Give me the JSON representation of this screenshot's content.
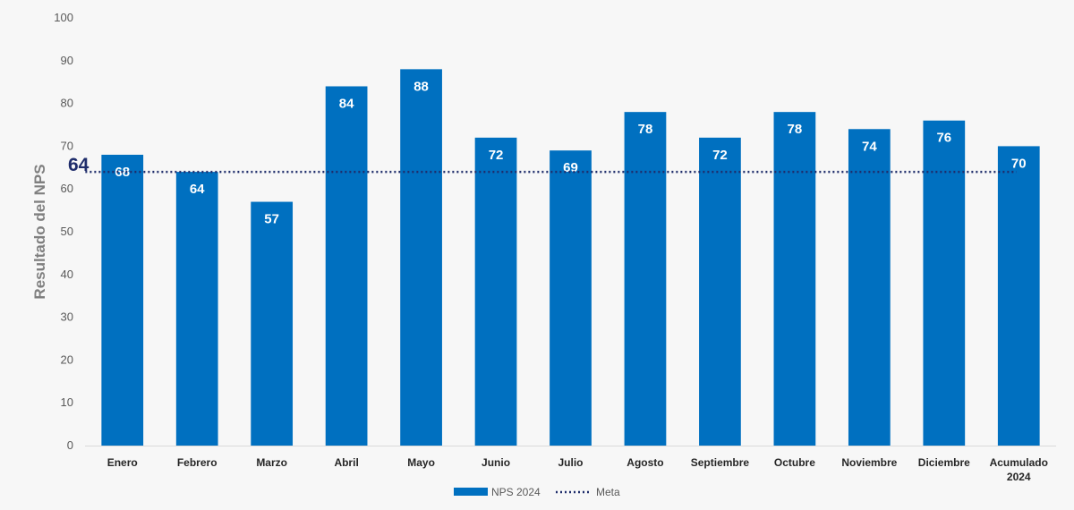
{
  "chart_data": {
    "type": "bar",
    "ylabel": "Resultado del NPS",
    "xlabel": "",
    "ylim": [
      0,
      100
    ],
    "yticks": [
      0,
      10,
      20,
      30,
      40,
      50,
      60,
      70,
      80,
      90,
      100
    ],
    "categories": [
      [
        "Enero"
      ],
      [
        "Febrero"
      ],
      [
        "Marzo"
      ],
      [
        "Abril"
      ],
      [
        "Mayo"
      ],
      [
        "Junio"
      ],
      [
        "Julio"
      ],
      [
        "Agosto"
      ],
      [
        "Septiembre"
      ],
      [
        "Octubre"
      ],
      [
        "Noviembre"
      ],
      [
        "Diciembre"
      ],
      [
        "Acumulado",
        "2024"
      ]
    ],
    "series": [
      {
        "name": "NPS 2024",
        "type": "bar",
        "color": "#0070c0",
        "values": [
          68,
          64,
          57,
          84,
          88,
          72,
          69,
          78,
          72,
          78,
          74,
          76,
          70
        ]
      },
      {
        "name": "Meta",
        "type": "line",
        "style": "dotted",
        "color": "#1f2d6b",
        "value": 64
      }
    ],
    "meta_label": "64",
    "legend_position": "bottom",
    "grid": false
  }
}
